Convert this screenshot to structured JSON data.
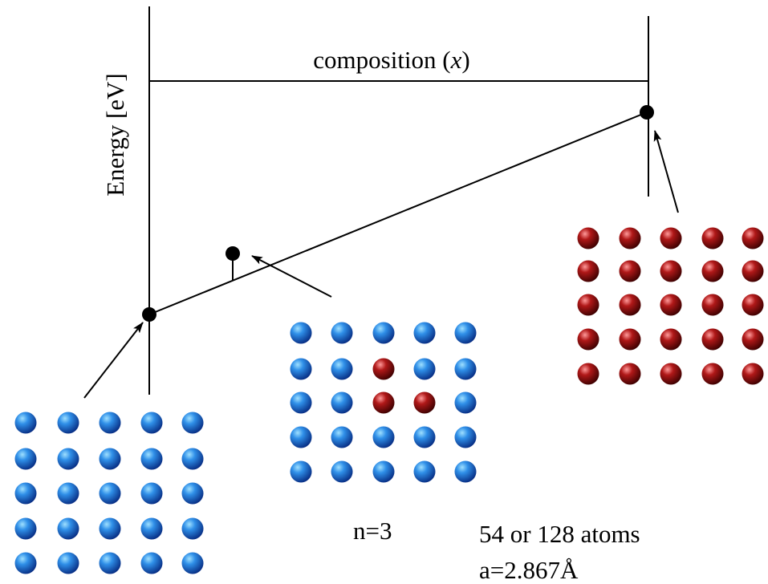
{
  "axis_labels": {
    "energy": "Energy [eV]",
    "composition": [
      "composition (",
      "x",
      ")"
    ]
  },
  "annotations": {
    "n": "n=3",
    "atoms": "54 or 128 atoms",
    "lattice": "a=2.867Å"
  }
}
